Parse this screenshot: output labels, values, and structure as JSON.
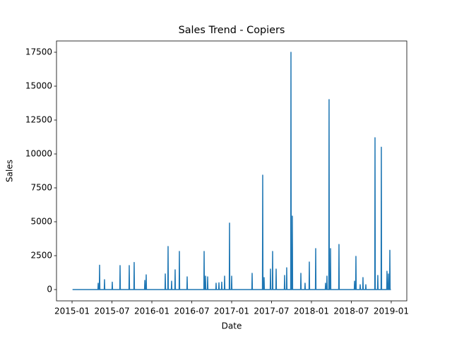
{
  "chart_data": {
    "type": "line",
    "title": "Sales Trend - Copiers",
    "x_label": "Date",
    "y_label": "Sales",
    "x": [
      0.07,
      3.89,
      3.93,
      3.97,
      4.1,
      4.14,
      4.18,
      4.84,
      4.88,
      4.92,
      6.01,
      6.05,
      6.09,
      7.18,
      7.22,
      7.26,
      8.56,
      8.6,
      8.64,
      9.3,
      9.34,
      9.38,
      10.9,
      10.94,
      10.98,
      11.11,
      11.15,
      11.19,
      13.98,
      14.02,
      14.06,
      14.4,
      14.44,
      14.48,
      14.93,
      14.97,
      15.01,
      15.46,
      15.5,
      15.54,
      16.1,
      16.14,
      16.18,
      17.27,
      17.31,
      17.35,
      19.82,
      19.86,
      19.9,
      20.03,
      20.07,
      20.11,
      20.35,
      20.39,
      20.43,
      21.62,
      21.66,
      21.7,
      22.05,
      22.09,
      22.13,
      22.47,
      22.51,
      22.55,
      22.9,
      22.94,
      22.98,
      23.64,
      23.68,
      23.72,
      23.96,
      24.0,
      24.04,
      27.04,
      27.08,
      27.12,
      28.63,
      28.67,
      28.71,
      28.84,
      28.88,
      28.92,
      29.8,
      29.84,
      29.88,
      30.12,
      30.16,
      30.2,
      30.65,
      30.69,
      30.73,
      31.92,
      31.96,
      32.0,
      32.24,
      32.28,
      32.32,
      32.88,
      32.92,
      32.96,
      33.09,
      33.13,
      33.17,
      34.37,
      34.41,
      34.45,
      35.0,
      35.04,
      35.08,
      35.64,
      35.68,
      35.72,
      36.6,
      36.64,
      36.68,
      38.08,
      38.12,
      38.16,
      38.29,
      38.33,
      38.37,
      38.61,
      38.65,
      38.69,
      38.83,
      38.87,
      38.91,
      40.1,
      40.14,
      40.18,
      42.44,
      42.48,
      42.52,
      42.65,
      42.69,
      42.73,
      43.29,
      43.33,
      43.37,
      43.71,
      43.75,
      43.79,
      44.14,
      44.18,
      44.22,
      45.52,
      45.56,
      45.6,
      45.94,
      45.98,
      46.02,
      46.47,
      46.51,
      46.55,
      47.32,
      47.36,
      47.4,
      47.53,
      47.57,
      47.61,
      47.75,
      47.79,
      47.83,
      47.95
    ],
    "series": [
      {
        "name": "Sales",
        "color": "#1f77b4",
        "values": [
          0,
          0,
          470,
          0,
          0,
          1800,
          0,
          0,
          730,
          0,
          0,
          550,
          0,
          0,
          1770,
          0,
          0,
          1770,
          0,
          0,
          2000,
          0,
          0,
          680,
          0,
          0,
          1090,
          0,
          0,
          1150,
          0,
          0,
          3180,
          0,
          0,
          620,
          0,
          0,
          1460,
          0,
          0,
          2810,
          0,
          0,
          940,
          0,
          0,
          2810,
          0,
          0,
          990,
          0,
          0,
          940,
          0,
          0,
          470,
          0,
          0,
          500,
          0,
          0,
          550,
          0,
          0,
          990,
          0,
          0,
          4900,
          0,
          0,
          990,
          0,
          0,
          1200,
          0,
          0,
          8440,
          0,
          0,
          885,
          0,
          0,
          1510,
          0,
          0,
          2810,
          0,
          0,
          1510,
          0,
          0,
          1040,
          0,
          0,
          1610,
          0,
          0,
          17500,
          0,
          0,
          5420,
          0,
          0,
          1200,
          0,
          0,
          470,
          0,
          0,
          2030,
          0,
          0,
          3020,
          0,
          0,
          470,
          0,
          0,
          990,
          0,
          0,
          14010,
          0,
          0,
          3020,
          0,
          0,
          3330,
          0,
          0,
          620,
          0,
          0,
          2450,
          0,
          0,
          360,
          0,
          0,
          885,
          0,
          0,
          360,
          0,
          0,
          11200,
          0,
          0,
          1040,
          0,
          0,
          10500,
          0,
          0,
          1350,
          0,
          0,
          1150,
          0,
          0,
          2900,
          0,
          0
        ]
      }
    ],
    "xlim": [
      -2.34,
      50.34
    ],
    "xticks": [
      {
        "value": 0,
        "label": "2015-01"
      },
      {
        "value": 6,
        "label": "2015-07"
      },
      {
        "value": 12,
        "label": "2016-01"
      },
      {
        "value": 18,
        "label": "2016-07"
      },
      {
        "value": 24,
        "label": "2017-01"
      },
      {
        "value": 30,
        "label": "2017-07"
      },
      {
        "value": 36,
        "label": "2018-01"
      },
      {
        "value": 42,
        "label": "2018-07"
      },
      {
        "value": 48,
        "label": "2019-01"
      }
    ],
    "ylim": [
      -833,
      18333
    ],
    "yticks": [
      0,
      2500,
      5000,
      7500,
      10000,
      12500,
      15000,
      17500
    ]
  }
}
